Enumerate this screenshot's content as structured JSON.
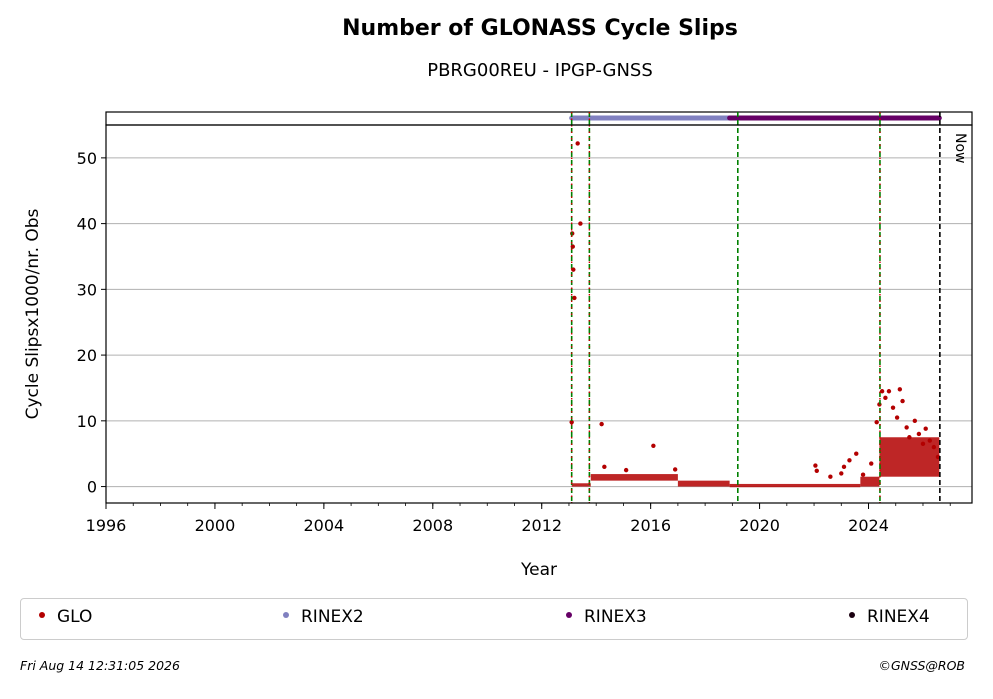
{
  "chart_data": {
    "type": "scatter",
    "title": "Number of GLONASS Cycle Slips",
    "subtitle": "PBRG00REU - IPGP-GNSS",
    "xlabel": "Year",
    "ylabel": "Cycle Slipsx1000/nr. Obs",
    "xlim": [
      1996,
      2027.8
    ],
    "ylim": [
      -2.5,
      55
    ],
    "xticks": [
      "1996",
      "2000",
      "2004",
      "2008",
      "2012",
      "2016",
      "2020",
      "2024"
    ],
    "yticks": [
      "0",
      "10",
      "20",
      "30",
      "40",
      "50"
    ],
    "grid": "horizontal",
    "series": [
      {
        "name": "GLO",
        "color": "#b30000",
        "points": [
          [
            2013.1,
            9.8
          ],
          [
            2013.12,
            38.5
          ],
          [
            2013.14,
            36.5
          ],
          [
            2013.16,
            33.0
          ],
          [
            2013.2,
            28.7
          ],
          [
            2013.32,
            52.2
          ],
          [
            2013.42,
            40.0
          ],
          [
            2014.2,
            9.5
          ],
          [
            2016.1,
            6.2
          ],
          [
            2014.3,
            3.0
          ],
          [
            2015.1,
            2.5
          ],
          [
            2016.9,
            2.6
          ],
          [
            2022.05,
            3.2
          ],
          [
            2022.1,
            2.4
          ],
          [
            2022.6,
            1.5
          ],
          [
            2023.0,
            2.0
          ],
          [
            2023.1,
            3.0
          ],
          [
            2023.3,
            4.0
          ],
          [
            2023.55,
            5.0
          ],
          [
            2023.8,
            1.8
          ],
          [
            2024.1,
            3.5
          ],
          [
            2024.3,
            9.8
          ],
          [
            2024.4,
            12.5
          ],
          [
            2024.5,
            14.5
          ],
          [
            2024.62,
            13.5
          ],
          [
            2024.75,
            14.5
          ],
          [
            2024.9,
            12.0
          ],
          [
            2025.05,
            10.5
          ],
          [
            2025.15,
            14.8
          ],
          [
            2025.25,
            13.0
          ],
          [
            2025.4,
            9.0
          ],
          [
            2025.5,
            7.5
          ],
          [
            2025.7,
            10.0
          ],
          [
            2025.85,
            8.0
          ],
          [
            2026.0,
            6.5
          ],
          [
            2026.1,
            8.8
          ],
          [
            2026.25,
            7.0
          ],
          [
            2026.4,
            6.0
          ],
          [
            2026.55,
            4.5
          ]
        ]
      }
    ],
    "format_bars": [
      {
        "name": "RINEX2",
        "color": "#8080c0",
        "from": 2013.1,
        "to": 2018.9
      },
      {
        "name": "RINEX3",
        "color": "#660066",
        "from": 2018.9,
        "to": 2026.6
      }
    ],
    "vlines": [
      {
        "x": 2013.1,
        "style": "green-dashed+red-dotted"
      },
      {
        "x": 2013.75,
        "style": "green-dashed+red-dotted"
      },
      {
        "x": 2019.2,
        "style": "green-dashed"
      },
      {
        "x": 2024.42,
        "style": "green-dashed+red-dotted"
      },
      {
        "x": 2026.62,
        "style": "black-dashed"
      }
    ],
    "now_label": "Now"
  },
  "legend": {
    "items": [
      {
        "label": "GLO",
        "color": "#b30000"
      },
      {
        "label": "RINEX2",
        "color": "#8080c0"
      },
      {
        "label": "RINEX3",
        "color": "#660066"
      },
      {
        "label": "RINEX4",
        "color": "#1a0010"
      }
    ]
  },
  "footer": {
    "timestamp": "Fri Aug 14 12:31:05 2026",
    "credit": "©GNSS@ROB"
  }
}
